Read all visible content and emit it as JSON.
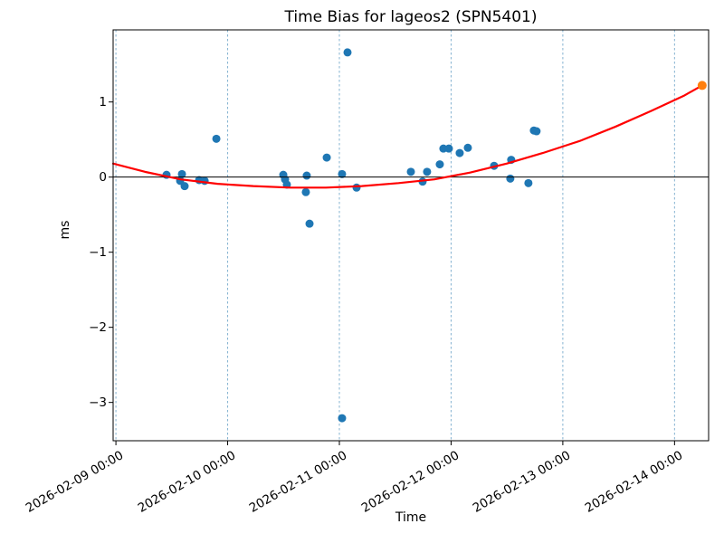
{
  "chart_data": {
    "type": "scatter",
    "title": "Time Bias for lageos2 (SPN5401)",
    "xlabel": "Time",
    "ylabel": "ms",
    "x_axis_epoch": "2026-02-09 00:00",
    "x_ticks": [
      {
        "day": 0,
        "label": "2026-02-09 00:00"
      },
      {
        "day": 1,
        "label": "2026-02-10 00:00"
      },
      {
        "day": 2,
        "label": "2026-02-11 00:00"
      },
      {
        "day": 3,
        "label": "2026-02-12 00:00"
      },
      {
        "day": 4,
        "label": "2026-02-13 00:00"
      },
      {
        "day": 5,
        "label": "2026-02-14 00:00"
      }
    ],
    "y_ticks": [
      {
        "value": 1,
        "label": "1"
      },
      {
        "value": 0,
        "label": "0"
      },
      {
        "value": -1,
        "label": "−1"
      },
      {
        "value": -2,
        "label": "−2"
      },
      {
        "value": -3,
        "label": "−3"
      }
    ],
    "xlim_days": [
      -0.025,
      5.305
    ],
    "ylim": [
      -3.51,
      1.96
    ],
    "grid": {
      "vertical": true,
      "horizontal": false,
      "style": "dashed",
      "color": "#85b3d1"
    },
    "zero_line": {
      "show": true,
      "color": "#000000"
    },
    "colors": {
      "observations": "#1f77b4",
      "fit": "#ff0000",
      "prediction": "#ff7f0e"
    },
    "series": [
      {
        "name": "time-bias-observations",
        "kind": "scatter",
        "color": "#1f77b4",
        "marker_radius": 4.5,
        "points": [
          {
            "t": "2026-02-09 10:52",
            "d": 0.453,
            "ms": 0.03
          },
          {
            "t": "2026-02-09 13:48",
            "d": 0.575,
            "ms": -0.05
          },
          {
            "t": "2026-02-09 14:11",
            "d": 0.591,
            "ms": 0.04
          },
          {
            "t": "2026-02-09 14:46",
            "d": 0.615,
            "ms": -0.12
          },
          {
            "t": "2026-02-09 17:53",
            "d": 0.745,
            "ms": -0.04
          },
          {
            "t": "2026-02-09 19:03",
            "d": 0.794,
            "ms": -0.05
          },
          {
            "t": "2026-02-09 21:35",
            "d": 0.899,
            "ms": 0.51
          },
          {
            "t": "2026-02-10 11:57",
            "d": 1.498,
            "ms": 0.03
          },
          {
            "t": "2026-02-10 12:20",
            "d": 1.514,
            "ms": -0.03
          },
          {
            "t": "2026-02-10 12:43",
            "d": 1.53,
            "ms": -0.1
          },
          {
            "t": "2026-02-10 16:48",
            "d": 1.7,
            "ms": -0.2
          },
          {
            "t": "2026-02-10 17:00",
            "d": 1.708,
            "ms": 0.02
          },
          {
            "t": "2026-02-10 17:36",
            "d": 1.733,
            "ms": -0.62
          },
          {
            "t": "2026-02-10 21:17",
            "d": 1.887,
            "ms": 0.26
          },
          {
            "t": "2026-02-11 00:35",
            "d": 2.024,
            "ms": 0.04
          },
          {
            "t": "2026-02-11 00:35",
            "d": 2.024,
            "ms": -3.21
          },
          {
            "t": "2026-02-11 01:45",
            "d": 2.073,
            "ms": 1.66
          },
          {
            "t": "2026-02-11 03:42",
            "d": 2.154,
            "ms": -0.14
          },
          {
            "t": "2026-02-11 15:22",
            "d": 2.64,
            "ms": 0.07
          },
          {
            "t": "2026-02-11 17:53",
            "d": 2.745,
            "ms": -0.06
          },
          {
            "t": "2026-02-11 18:50",
            "d": 2.785,
            "ms": 0.07
          },
          {
            "t": "2026-02-11 21:35",
            "d": 2.899,
            "ms": 0.17
          },
          {
            "t": "2026-02-11 22:21",
            "d": 2.931,
            "ms": 0.38
          },
          {
            "t": "2026-02-11 23:31",
            "d": 2.98,
            "ms": 0.38
          },
          {
            "t": "2026-02-12 01:51",
            "d": 3.077,
            "ms": 0.32
          },
          {
            "t": "2026-02-12 03:36",
            "d": 3.15,
            "ms": 0.39
          },
          {
            "t": "2026-02-12 09:14",
            "d": 3.385,
            "ms": 0.15
          },
          {
            "t": "2026-02-12 12:43",
            "d": 3.53,
            "ms": -0.02
          },
          {
            "t": "2026-02-12 12:55",
            "d": 3.538,
            "ms": 0.23
          },
          {
            "t": "2026-02-12 16:36",
            "d": 3.692,
            "ms": -0.08
          },
          {
            "t": "2026-02-12 17:47",
            "d": 3.741,
            "ms": 0.62
          },
          {
            "t": "2026-02-12 18:22",
            "d": 3.765,
            "ms": 0.61
          }
        ]
      },
      {
        "name": "polynomial-fit-curve",
        "kind": "line",
        "color": "#ff0000",
        "line_width": 2.2,
        "points": [
          {
            "d": -0.025,
            "ms": 0.18
          },
          {
            "d": 0.26,
            "ms": 0.07
          },
          {
            "d": 0.58,
            "ms": -0.03
          },
          {
            "d": 0.91,
            "ms": -0.09
          },
          {
            "d": 1.23,
            "ms": -0.12
          },
          {
            "d": 1.56,
            "ms": -0.14
          },
          {
            "d": 1.88,
            "ms": -0.14
          },
          {
            "d": 2.2,
            "ms": -0.12
          },
          {
            "d": 2.53,
            "ms": -0.08
          },
          {
            "d": 2.85,
            "ms": -0.03
          },
          {
            "d": 3.17,
            "ms": 0.06
          },
          {
            "d": 3.5,
            "ms": 0.18
          },
          {
            "d": 3.82,
            "ms": 0.32
          },
          {
            "d": 4.15,
            "ms": 0.48
          },
          {
            "d": 4.47,
            "ms": 0.67
          },
          {
            "d": 4.79,
            "ms": 0.88
          },
          {
            "d": 5.08,
            "ms": 1.08
          },
          {
            "d": 5.247,
            "ms": 1.22
          }
        ]
      },
      {
        "name": "predicted-bias",
        "kind": "scatter",
        "color": "#ff7f0e",
        "marker_radius": 5,
        "points": [
          {
            "t": "2026-02-14 05:56",
            "d": 5.247,
            "ms": 1.22
          }
        ]
      }
    ]
  }
}
